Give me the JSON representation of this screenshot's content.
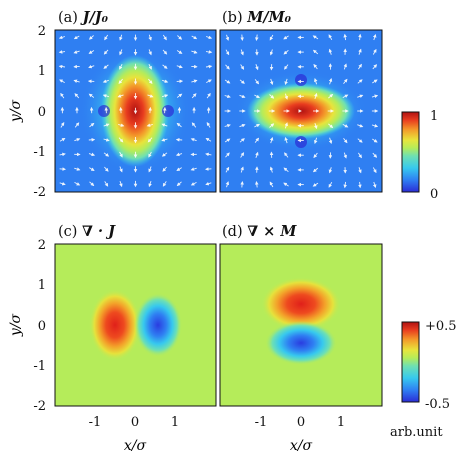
{
  "figure": {
    "panels": [
      {
        "id": "a",
        "tag": "(a) ",
        "title": "J/J₀",
        "kind": "current-density-magnitude"
      },
      {
        "id": "b",
        "tag": "(b) ",
        "title": "M/M₀",
        "kind": "magnetization-magnitude"
      },
      {
        "id": "c",
        "tag": "(c) ",
        "title": "∇ · J",
        "kind": "divergence"
      },
      {
        "id": "d",
        "tag": "(d) ",
        "title": "∇ × M",
        "kind": "curl"
      }
    ],
    "colorbar_top": {
      "max_label": "1",
      "min_label": "0"
    },
    "colorbar_bottom": {
      "max_label": "+0.5",
      "min_label": "-0.5",
      "unit_label": "arb.unit"
    },
    "axes": {
      "ylabel": "y/σ",
      "xlabel": "x/σ",
      "yticks_top": [
        "2",
        "1",
        "0",
        "-1",
        "-2"
      ],
      "yticks_bottom": [
        "2",
        "1",
        "0",
        "-1",
        "-2"
      ],
      "xticks": [
        "-1",
        "0",
        "1"
      ]
    },
    "colormap": [
      "#2b2bd6",
      "#2f7ff2",
      "#37c9ee",
      "#6fe0b2",
      "#b5ec5a",
      "#e8e43c",
      "#f39a2a",
      "#e83c1f",
      "#b01212"
    ]
  },
  "chart_data": [
    {
      "type": "heatmap",
      "title": "(a) J/J0",
      "xlim": [
        -2,
        2
      ],
      "ylim": [
        -2,
        2
      ],
      "color_range": [
        0,
        1
      ],
      "grid": false,
      "peak": {
        "x": 0,
        "y": 0,
        "value": 1
      },
      "overlay": "vector arrows (white)"
    },
    {
      "type": "heatmap",
      "title": "(b) M/M0",
      "xlim": [
        -2,
        2
      ],
      "ylim": [
        -2,
        2
      ],
      "color_range": [
        0,
        1
      ],
      "grid": false,
      "peak": {
        "x": 0,
        "y": 0,
        "value": 1
      },
      "overlay": "vector arrows (white)"
    },
    {
      "type": "heatmap",
      "title": "(c) ∇·J",
      "xlim": [
        -2,
        2
      ],
      "ylim": [
        -2,
        2
      ],
      "color_range": [
        -0.5,
        0.5
      ],
      "extrema": [
        {
          "x": -0.5,
          "y": 0,
          "value": 0.5
        },
        {
          "x": 0.5,
          "y": 0,
          "value": -0.5
        }
      ]
    },
    {
      "type": "heatmap",
      "title": "(d) ∇×M",
      "xlim": [
        -2,
        2
      ],
      "ylim": [
        -2,
        2
      ],
      "color_range": [
        -0.5,
        0.5
      ],
      "extrema": [
        {
          "x": 0,
          "y": 0.4,
          "value": 0.5
        },
        {
          "x": 0,
          "y": -0.4,
          "value": -0.5
        }
      ]
    }
  ]
}
